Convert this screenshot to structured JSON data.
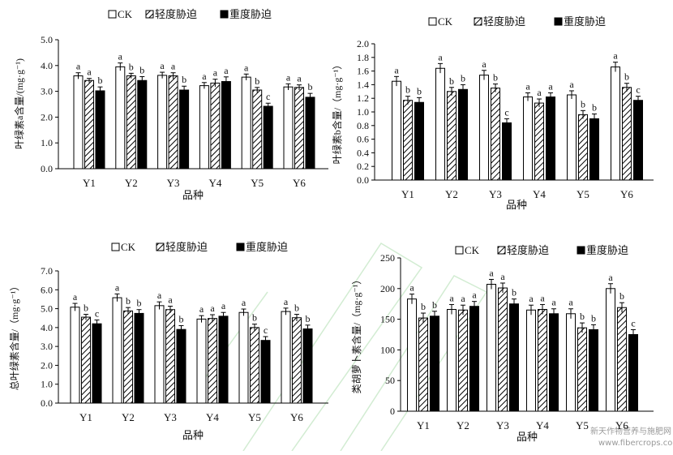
{
  "colors": {
    "ck_fill": "#ffffff",
    "light_fill": "hatch-black-diagonal",
    "severe_fill": "#000000",
    "axis": "#000000",
    "background_watermark": "#7ec87e"
  },
  "watermark": {
    "cn": "新天作物营养与施肥网",
    "url": "www.fibercrops.com"
  },
  "chart_data": [
    {
      "type": "bar",
      "panel": "top-left",
      "categories": [
        "Y1",
        "Y2",
        "Y3",
        "Y4",
        "Y5",
        "Y6"
      ],
      "xlabel": "品种",
      "ylabel": "叶绿素a含量/(mg·g⁻¹)",
      "ylim": [
        0,
        5
      ],
      "ytick_step": 1,
      "ytick_decimals": 1,
      "legend": "top",
      "series": [
        {
          "name": "CK",
          "values": [
            3.6,
            3.95,
            3.62,
            3.22,
            3.55,
            3.17
          ],
          "errors": [
            0.12,
            0.15,
            0.12,
            0.12,
            0.12,
            0.12
          ],
          "letters": [
            "a",
            "a",
            "a",
            "a",
            "a",
            "a"
          ]
        },
        {
          "name": "轻度胁迫",
          "values": [
            3.42,
            3.6,
            3.6,
            3.32,
            3.05,
            3.15
          ],
          "errors": [
            0.08,
            0.1,
            0.12,
            0.15,
            0.1,
            0.1
          ],
          "letters": [
            "a",
            "b",
            "a",
            "a",
            "b",
            "a"
          ]
        },
        {
          "name": "重度胁迫",
          "values": [
            3.02,
            3.42,
            3.05,
            3.38,
            2.42,
            2.77
          ],
          "errors": [
            0.15,
            0.15,
            0.15,
            0.18,
            0.12,
            0.15
          ],
          "letters": [
            "b",
            "b",
            "b",
            "a",
            "c",
            "b"
          ]
        }
      ]
    },
    {
      "type": "bar",
      "panel": "top-right",
      "categories": [
        "Y1",
        "Y2",
        "Y3",
        "Y4",
        "Y5",
        "Y6"
      ],
      "xlabel": "品种",
      "ylabel": "叶绿素b含量/（mg·g⁻¹）",
      "ylim": [
        0,
        2
      ],
      "ytick_step": 0.2,
      "ytick_decimals": 1,
      "legend": "top",
      "series": [
        {
          "name": "CK",
          "values": [
            1.45,
            1.64,
            1.54,
            1.22,
            1.25,
            1.66
          ],
          "errors": [
            0.07,
            0.07,
            0.07,
            0.06,
            0.06,
            0.07
          ],
          "letters": [
            "a",
            "a",
            "a",
            "a",
            "a",
            "a"
          ]
        },
        {
          "name": "轻度胁迫",
          "values": [
            1.17,
            1.3,
            1.35,
            1.13,
            0.96,
            1.36
          ],
          "errors": [
            0.06,
            0.06,
            0.06,
            0.06,
            0.06,
            0.06
          ],
          "letters": [
            "b",
            "b",
            "b",
            "a",
            "b",
            "b"
          ]
        },
        {
          "name": "重度胁迫",
          "values": [
            1.14,
            1.33,
            0.84,
            1.22,
            0.9,
            1.17
          ],
          "errors": [
            0.07,
            0.07,
            0.06,
            0.06,
            0.07,
            0.06
          ],
          "letters": [
            "b",
            "b",
            "c",
            "a",
            "b",
            "c"
          ]
        }
      ]
    },
    {
      "type": "bar",
      "panel": "bottom-left",
      "categories": [
        "Y1",
        "Y2",
        "Y3",
        "Y4",
        "Y5",
        "Y6"
      ],
      "xlabel": "品种",
      "ylabel": "总叶绿素含量/（mg·g⁻¹）",
      "ylim": [
        0,
        7
      ],
      "ytick_step": 1,
      "ytick_decimals": 1,
      "legend": "top",
      "series": [
        {
          "name": "CK",
          "values": [
            5.08,
            5.58,
            5.16,
            4.45,
            4.8,
            4.85
          ],
          "errors": [
            0.2,
            0.2,
            0.2,
            0.18,
            0.18,
            0.18
          ],
          "letters": [
            "a",
            "a",
            "a",
            "a",
            "a",
            "a"
          ]
        },
        {
          "name": "轻度胁迫",
          "values": [
            4.55,
            4.88,
            4.95,
            4.48,
            4.0,
            4.52
          ],
          "errors": [
            0.15,
            0.18,
            0.18,
            0.2,
            0.18,
            0.18
          ],
          "letters": [
            "b",
            "b",
            "a",
            "a",
            "b",
            "b"
          ]
        },
        {
          "name": "重度胁迫",
          "values": [
            4.2,
            4.75,
            3.9,
            4.6,
            3.32,
            3.93
          ],
          "errors": [
            0.2,
            0.2,
            0.2,
            0.2,
            0.2,
            0.2
          ],
          "letters": [
            "c",
            "b",
            "b",
            "a",
            "c",
            "b"
          ]
        }
      ]
    },
    {
      "type": "bar",
      "panel": "bottom-right",
      "categories": [
        "Y1",
        "Y2",
        "Y3",
        "Y4",
        "Y5",
        "Y6"
      ],
      "xlabel": "品种",
      "ylabel": "类胡萝卜素含量/（mg·g⁻¹）",
      "ylim": [
        0,
        250
      ],
      "ytick_step": 50,
      "ytick_decimals": 0,
      "legend": "top",
      "series": [
        {
          "name": "CK",
          "values": [
            183,
            166,
            207,
            165,
            159,
            200
          ],
          "errors": [
            8,
            8,
            8,
            8,
            8,
            8
          ],
          "letters": [
            "a",
            "a",
            "a",
            "a",
            "a",
            "a"
          ]
        },
        {
          "name": "轻度胁迫",
          "values": [
            152,
            165,
            201,
            166,
            136,
            169
          ],
          "errors": [
            8,
            8,
            8,
            8,
            8,
            8
          ],
          "letters": [
            "b",
            "a",
            "a",
            "a",
            "b",
            "b"
          ]
        },
        {
          "name": "重度胁迫",
          "values": [
            155,
            171,
            175,
            159,
            133,
            125
          ],
          "errors": [
            8,
            8,
            8,
            8,
            8,
            8
          ],
          "letters": [
            "b",
            "a",
            "b",
            "a",
            "b",
            "c"
          ]
        }
      ]
    }
  ]
}
